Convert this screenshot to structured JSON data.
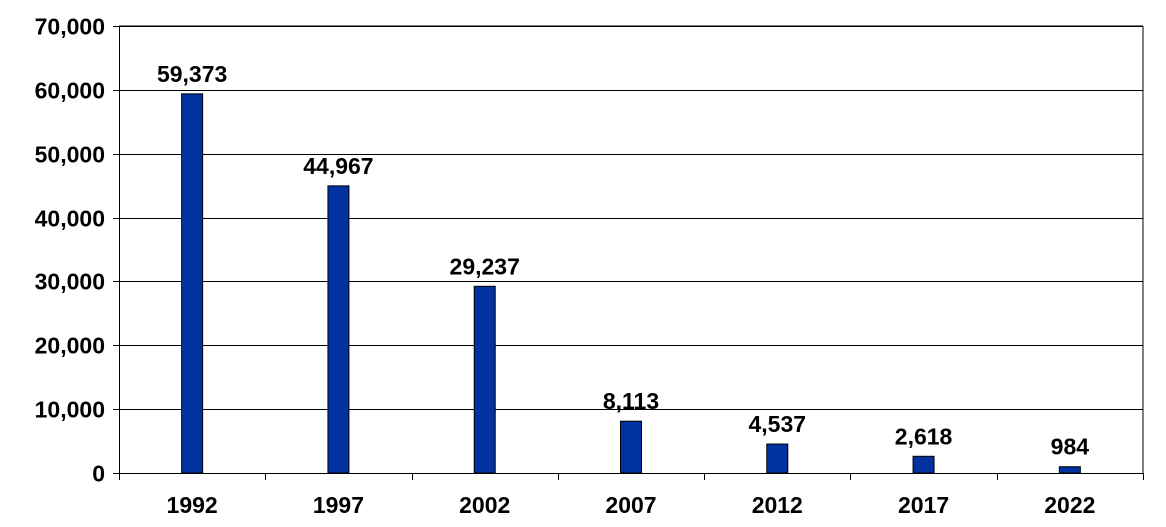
{
  "chart_data": {
    "type": "bar",
    "categories": [
      "1992",
      "1997",
      "2002",
      "2007",
      "2012",
      "2017",
      "2022"
    ],
    "values": [
      59373,
      44967,
      29237,
      8113,
      4537,
      2618,
      984
    ],
    "data_labels": [
      "59,373",
      "44,967",
      "29,237",
      "8,113",
      "4,537",
      "2,618",
      "984"
    ],
    "y_ticks": [
      0,
      10000,
      20000,
      30000,
      40000,
      50000,
      60000,
      70000
    ],
    "y_tick_labels": [
      "0",
      "10,000",
      "20,000",
      "30,000",
      "40,000",
      "50,000",
      "60,000",
      "70,000"
    ],
    "ylim": [
      0,
      70000
    ],
    "title": "",
    "xlabel": "",
    "ylabel": "",
    "grid": true,
    "colors": {
      "bar": "#0033a0",
      "bar_edge": "#000000",
      "grid": "#000000",
      "axis": "#000000"
    }
  }
}
